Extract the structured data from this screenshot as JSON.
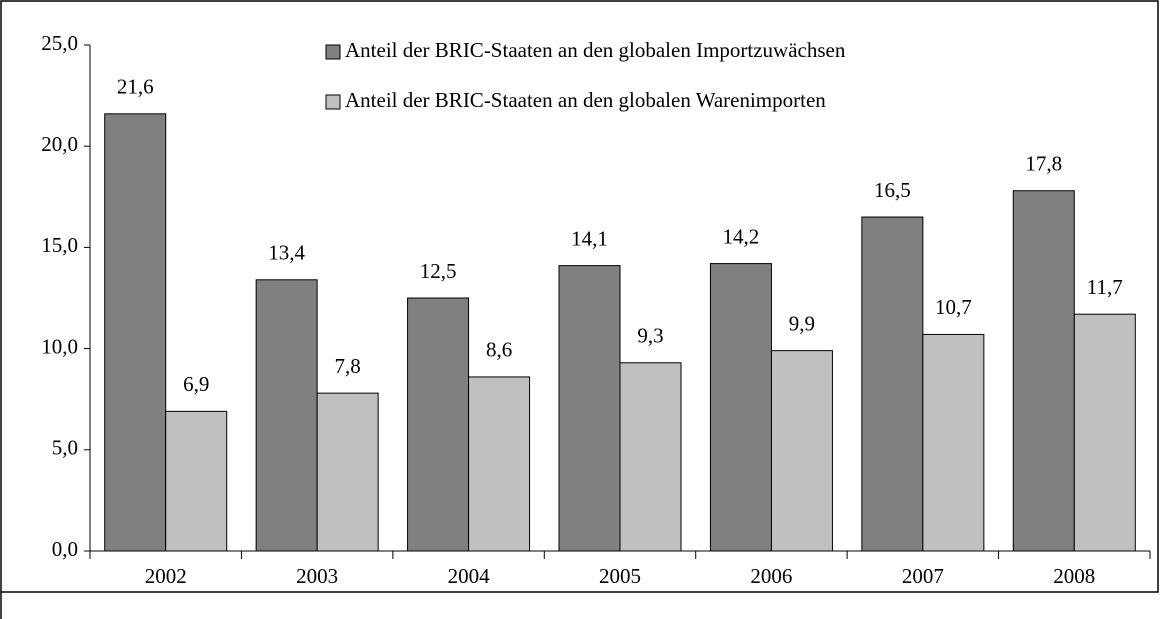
{
  "chart_data": {
    "type": "bar",
    "categories": [
      "2002",
      "2003",
      "2004",
      "2005",
      "2006",
      "2007",
      "2008"
    ],
    "series": [
      {
        "name": "Anteil der BRIC-Staaten an den globalen Importzuwächsen",
        "color": "#808080",
        "values": [
          21.6,
          13.4,
          12.5,
          14.1,
          14.2,
          16.5,
          17.8
        ],
        "value_labels": [
          "21,6",
          "13,4",
          "12,5",
          "14,1",
          "14,2",
          "16,5",
          "17,8"
        ]
      },
      {
        "name": "Anteil der BRIC-Staaten an den globalen Warenimporten",
        "color": "#c0c0c0",
        "values": [
          6.9,
          7.8,
          8.6,
          9.3,
          9.9,
          10.7,
          11.7
        ],
        "value_labels": [
          "6,9",
          "7,8",
          "8,6",
          "9,3",
          "9,9",
          "10,7",
          "11,7"
        ]
      }
    ],
    "ylim": [
      0,
      25
    ],
    "yticks": [
      {
        "value": 0,
        "label": "0,0"
      },
      {
        "value": 5,
        "label": "5,0"
      },
      {
        "value": 10,
        "label": "10,0"
      },
      {
        "value": 15,
        "label": "15,0"
      },
      {
        "value": 20,
        "label": "20,0"
      },
      {
        "value": 25,
        "label": "25,0"
      }
    ]
  }
}
